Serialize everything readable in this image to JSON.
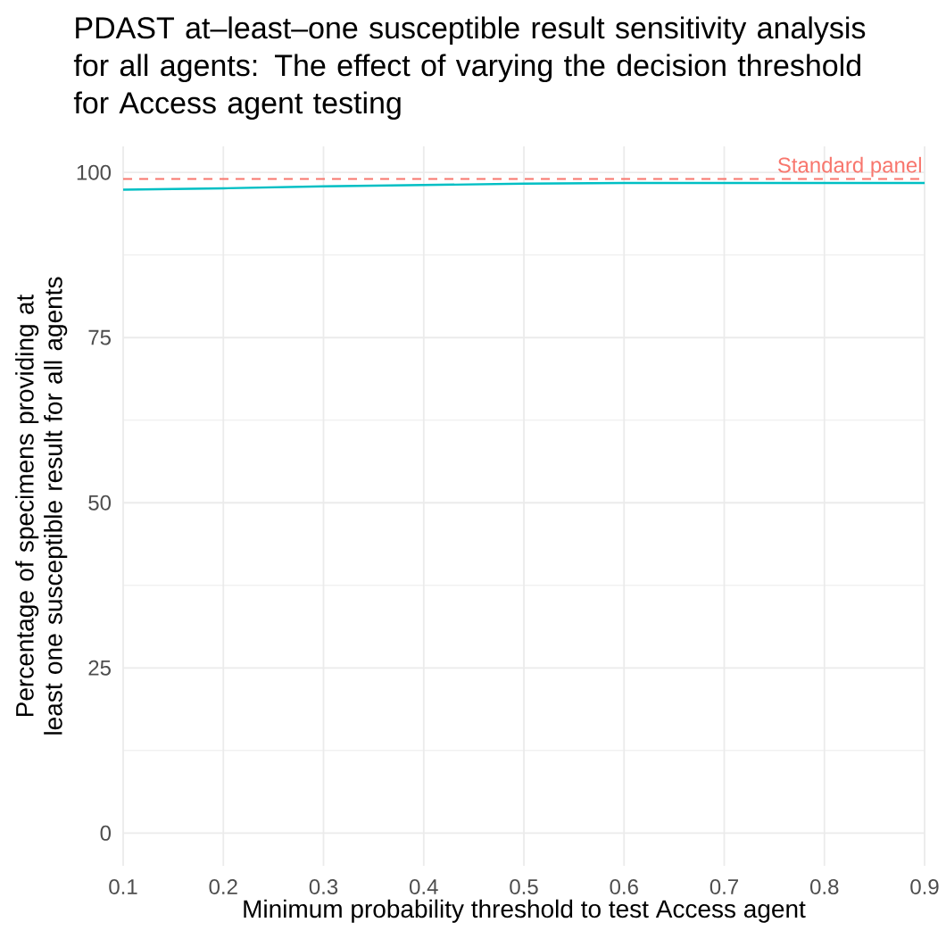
{
  "chart_data": {
    "type": "line",
    "title": "PDAST at–least–one susceptible result sensitivity analysis for all agents: The effect of varying the decision threshold for Access agent testing",
    "xlabel": "Minimum probability threshold to test Access agent",
    "ylabel": "Percentage of specimens providing at least one susceptible result for all agents",
    "x": [
      0.1,
      0.2,
      0.3,
      0.4,
      0.5,
      0.6,
      0.7,
      0.8,
      0.9
    ],
    "series": [
      {
        "color": "#00bfc4",
        "values": [
          97.4,
          97.6,
          97.9,
          98.1,
          98.3,
          98.4,
          98.4,
          98.4,
          98.4
        ]
      }
    ],
    "ref_lines": [
      {
        "axis": "y",
        "value": 99,
        "label": "Standard panel",
        "color": "#f8766d",
        "line_style": "dashed"
      }
    ],
    "xlim": [
      0.1,
      0.9
    ],
    "ylim": [
      -4.95,
      103.95
    ],
    "xticks": [
      0.1,
      0.2,
      0.3,
      0.4,
      0.5,
      0.6,
      0.7,
      0.8,
      0.9
    ],
    "yticks": [
      0,
      25,
      50,
      75,
      100
    ],
    "grid": true,
    "line_style": "solid"
  }
}
